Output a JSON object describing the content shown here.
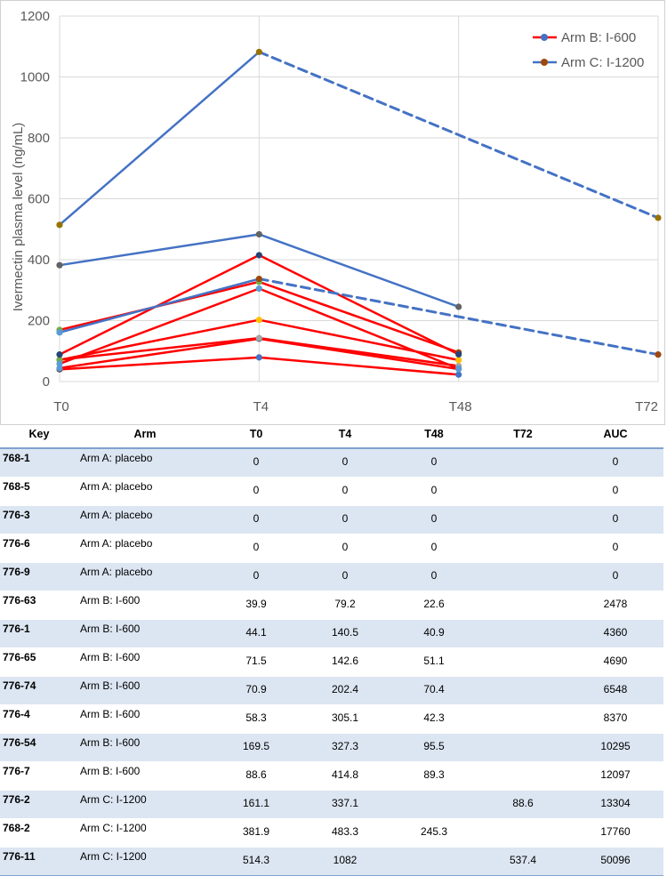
{
  "chart_data": {
    "type": "line",
    "title": "",
    "xlabel": "",
    "ylabel": "Ivermectin plasma level (ng/mL)",
    "categories": [
      "T0",
      "T4",
      "T48",
      "T72"
    ],
    "ylim": [
      0,
      1200
    ],
    "yticks": [
      0,
      200,
      400,
      600,
      800,
      1000,
      1200
    ],
    "grid": true,
    "legend": {
      "placement": "top-right",
      "entries": [
        {
          "label": "Arm B: I-600",
          "line_color": "#ff0000",
          "marker_color": "#4472c4"
        },
        {
          "label": "Arm C: I-1200",
          "line_color": "#4472c4",
          "marker_color": "#9e480e"
        }
      ]
    },
    "series": [
      {
        "name": "776-63",
        "arm": "B",
        "color": "#ff0000",
        "values": [
          39.9,
          79.2,
          22.6,
          null
        ],
        "markers": [
          "#5a5a5a",
          "#4472c4",
          "#4472c4",
          null
        ]
      },
      {
        "name": "776-1",
        "arm": "B",
        "color": "#ff0000",
        "values": [
          44.1,
          140.5,
          40.9,
          null
        ],
        "markers": [
          "#5b9bd5",
          "#264478",
          "#5b9bd5",
          null
        ]
      },
      {
        "name": "776-65",
        "arm": "B",
        "color": "#ff0000",
        "values": [
          71.5,
          142.6,
          51.1,
          null
        ],
        "markers": [
          "#ffc000",
          "#a5a5a5",
          "#a5a5a5",
          null
        ]
      },
      {
        "name": "776-74",
        "arm": "B",
        "color": "#ff0000",
        "values": [
          70.9,
          202.4,
          70.4,
          null
        ],
        "markers": [
          "#70ad47",
          "#ffc000",
          "#ffc000",
          null
        ]
      },
      {
        "name": "776-4",
        "arm": "B",
        "color": "#ff0000",
        "values": [
          58.3,
          305.1,
          42.3,
          null
        ],
        "markers": [
          "#5b9bd5",
          "#5b9bd5",
          "#5b9bd5",
          null
        ]
      },
      {
        "name": "776-54",
        "arm": "B",
        "color": "#ff0000",
        "values": [
          169.5,
          327.3,
          95.5,
          null
        ],
        "markers": [
          "#70ad47",
          "#70ad47",
          "#9e480e",
          null
        ]
      },
      {
        "name": "776-7",
        "arm": "B",
        "color": "#ff0000",
        "values": [
          88.6,
          414.8,
          89.3,
          null
        ],
        "markers": [
          "#264478",
          "#264478",
          "#264478",
          null
        ]
      },
      {
        "name": "776-2",
        "arm": "C",
        "color": "#4472c4",
        "values": [
          161.1,
          337.1,
          null,
          88.6
        ],
        "markers": [
          "#5b9bd5",
          "#9e480e",
          null,
          "#9e480e"
        ],
        "dashed_from": 1
      },
      {
        "name": "768-2",
        "arm": "C",
        "color": "#4472c4",
        "values": [
          381.9,
          483.3,
          245.3,
          null
        ],
        "markers": [
          "#636363",
          "#636363",
          "#636363",
          null
        ]
      },
      {
        "name": "776-11",
        "arm": "C",
        "color": "#4472c4",
        "values": [
          514.3,
          1082,
          null,
          537.4
        ],
        "markers": [
          "#997300",
          "#997300",
          null,
          "#997300"
        ],
        "dashed_from": 1
      }
    ]
  },
  "table": {
    "headers": [
      "Key",
      "Arm",
      "T0",
      "T4",
      "T48",
      "T72",
      "AUC"
    ],
    "rows": [
      {
        "key": "768-1",
        "arm": "Arm A: placebo",
        "t0": "0",
        "t4": "0",
        "t48": "0",
        "t72": "",
        "auc": "0"
      },
      {
        "key": "768-5",
        "arm": "Arm A: placebo",
        "t0": "0",
        "t4": "0",
        "t48": "0",
        "t72": "",
        "auc": "0"
      },
      {
        "key": "776-3",
        "arm": "Arm A: placebo",
        "t0": "0",
        "t4": "0",
        "t48": "0",
        "t72": "",
        "auc": "0"
      },
      {
        "key": "776-6",
        "arm": "Arm A: placebo",
        "t0": "0",
        "t4": "0",
        "t48": "0",
        "t72": "",
        "auc": "0"
      },
      {
        "key": "776-9",
        "arm": "Arm A: placebo",
        "t0": "0",
        "t4": "0",
        "t48": "0",
        "t72": "",
        "auc": "0"
      },
      {
        "key": "776-63",
        "arm": "Arm B: I-600",
        "t0": "39.9",
        "t4": "79.2",
        "t48": "22.6",
        "t72": "",
        "auc": "2478"
      },
      {
        "key": "776-1",
        "arm": "Arm B: I-600",
        "t0": "44.1",
        "t4": "140.5",
        "t48": "40.9",
        "t72": "",
        "auc": "4360"
      },
      {
        "key": "776-65",
        "arm": "Arm B: I-600",
        "t0": "71.5",
        "t4": "142.6",
        "t48": "51.1",
        "t72": "",
        "auc": "4690"
      },
      {
        "key": "776-74",
        "arm": "Arm B: I-600",
        "t0": "70.9",
        "t4": "202.4",
        "t48": "70.4",
        "t72": "",
        "auc": "6548"
      },
      {
        "key": "776-4",
        "arm": "Arm B: I-600",
        "t0": "58.3",
        "t4": "305.1",
        "t48": "42.3",
        "t72": "",
        "auc": "8370"
      },
      {
        "key": "776-54",
        "arm": "Arm B: I-600",
        "t0": "169.5",
        "t4": "327.3",
        "t48": "95.5",
        "t72": "",
        "auc": "10295"
      },
      {
        "key": "776-7",
        "arm": "Arm B: I-600",
        "t0": "88.6",
        "t4": "414.8",
        "t48": "89.3",
        "t72": "",
        "auc": "12097"
      },
      {
        "key": "776-2",
        "arm": "Arm C: I-1200",
        "t0": "161.1",
        "t4": "337.1",
        "t48": "",
        "t72": "88.6",
        "auc": "13304"
      },
      {
        "key": "768-2",
        "arm": "Arm C: I-1200",
        "t0": "381.9",
        "t4": "483.3",
        "t48": "245.3",
        "t72": "",
        "auc": "17760"
      },
      {
        "key": "776-11",
        "arm": "Arm C: I-1200",
        "t0": "514.3",
        "t4": "1082",
        "t48": "",
        "t72": "537.4",
        "auc": "50096"
      }
    ]
  }
}
